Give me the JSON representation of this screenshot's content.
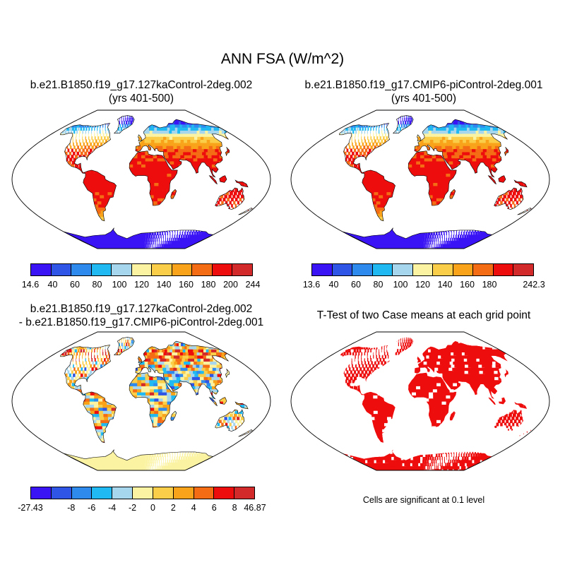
{
  "figure": {
    "title": "ANN FSA (W/m^2)"
  },
  "panels": [
    {
      "title_line1": "b.e21.B1850.f19_g17.127kaControl-2deg.002",
      "title_line2": "(yrs 401-500)",
      "field": "absolute"
    },
    {
      "title_line1": "b.e21.B1850.f19_g17.CMIP6-piControl-2deg.001",
      "title_line2": "(yrs 401-500)",
      "field": "absolute"
    },
    {
      "title_line1": "b.e21.B1850.f19_g17.127kaControl-2deg.002",
      "title_line2": "- b.e21.B1850.f19_g17.CMIP6-piControl-2deg.001",
      "field": "difference"
    },
    {
      "title_line1": "T-Test of two Case means at each grid point",
      "field": "significance",
      "note": "Cells are significant at 0.1 level"
    }
  ],
  "colorbars": [
    {
      "colors": [
        "#3a14f5",
        "#2f55e6",
        "#2f8aee",
        "#20b9f2",
        "#a6d6ee",
        "#fbf3a2",
        "#fbce4a",
        "#f9a31a",
        "#f46d14",
        "#ee0d0d",
        "#d2292b"
      ],
      "labels": [
        "14.6",
        "40",
        "60",
        "80",
        "100",
        "120",
        "140",
        "160",
        "180",
        "200",
        "244"
      ]
    },
    {
      "colors": [
        "#3a14f5",
        "#2f55e6",
        "#2f8aee",
        "#20b9f2",
        "#a6d6ee",
        "#fbf3a2",
        "#fbce4a",
        "#f9a31a",
        "#f46d14",
        "#ee0d0d",
        "#d2292b"
      ],
      "labels": [
        "13.6",
        "40",
        "60",
        "80",
        "100",
        "120",
        "140",
        "160",
        "180",
        "",
        "242.3"
      ]
    },
    {
      "colors": [
        "#3a14f5",
        "#2f55e6",
        "#2f8aee",
        "#20b9f2",
        "#a6d6ee",
        "#fbf3a2",
        "#fbce4a",
        "#f9a31a",
        "#f46d14",
        "#ee0d0d",
        "#d2292b"
      ],
      "labels": [
        "-27.43",
        "",
        "-8",
        "-6",
        "-4",
        "-2",
        "0",
        "2",
        "4",
        "6",
        "8",
        "46.87"
      ]
    }
  ],
  "chart_data": {
    "type": "map",
    "projection": "Robinson-like global map",
    "variable": "ANN FSA (W/m^2)",
    "absolute_levels": [
      40,
      60,
      80,
      100,
      120,
      140,
      160,
      180,
      200
    ],
    "difference_levels": [
      -8,
      -6,
      -4,
      -2,
      0,
      2,
      4,
      6,
      8
    ],
    "significance_color": "#ee0d0d"
  }
}
